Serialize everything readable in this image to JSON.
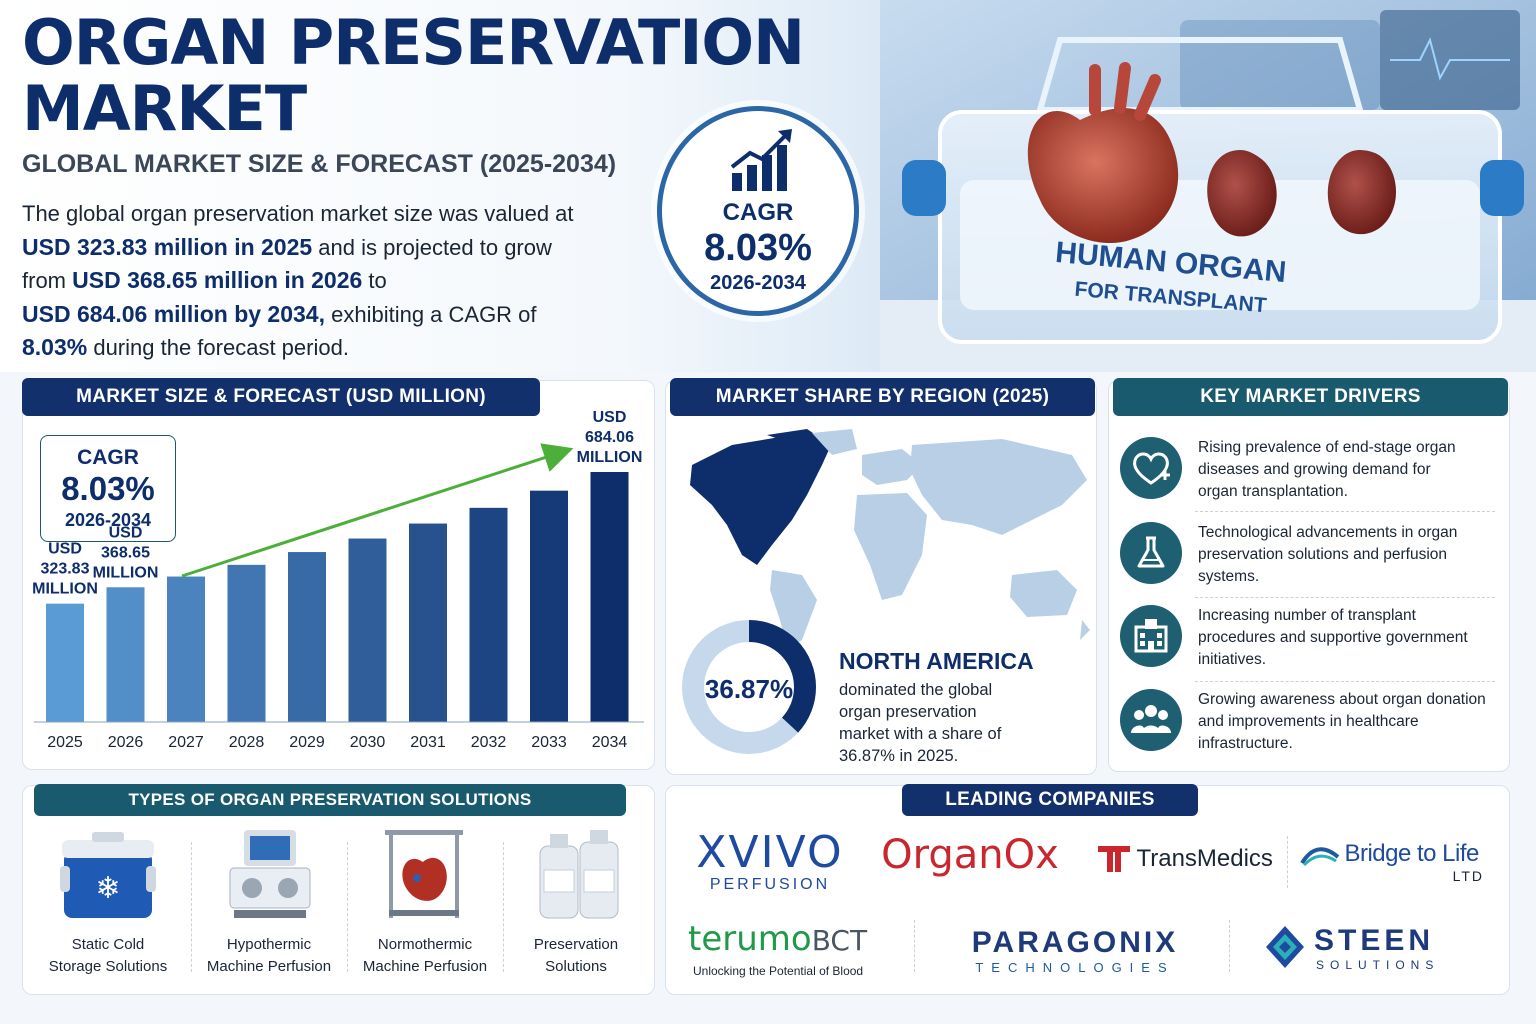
{
  "header": {
    "title_line1": "ORGAN PRESERVATION",
    "title_line2": "MARKET",
    "subtitle": "GLOBAL MARKET SIZE & FORECAST (2025-2034)",
    "intro": {
      "l1": "The global organ preservation market size was valued at",
      "l2b": "USD 323.83 million in 2025",
      "l2": " and is projected to grow",
      "l3a": "from ",
      "l3b": "USD 368.65 million in 2026",
      "l3c": " to",
      "l4b": "USD 684.06 million by 2034,",
      "l4": " exhibiting a CAGR of",
      "l5b": "8.03%",
      "l5": " during the forecast period."
    },
    "cagr": {
      "label": "CAGR",
      "value": "8.03%",
      "period": "2026-2034"
    },
    "photo_label1": "HUMAN ORGAN",
    "photo_label2": "FOR TRANSPLANT"
  },
  "market_panel": {
    "heading": "MARKET SIZE & FORECAST (USD MILLION)",
    "cagr_label": "CAGR",
    "cagr_value": "8.03%",
    "cagr_period": "2026-2034"
  },
  "chart_data": {
    "type": "bar",
    "categories": [
      "2025",
      "2026",
      "2027",
      "2028",
      "2029",
      "2030",
      "2031",
      "2032",
      "2033",
      "2034"
    ],
    "values": [
      323.83,
      368.65,
      398,
      430,
      465,
      502,
      543,
      586,
      633,
      684.06
    ],
    "title": "MARKET SIZE & FORECAST (USD MILLION)",
    "annotations": [
      {
        "category": "2025",
        "lines": [
          "USD",
          "323.83",
          "MILLION"
        ]
      },
      {
        "category": "2026",
        "lines": [
          "USD",
          "368.65",
          "MILLION"
        ]
      },
      {
        "category": "2034",
        "lines": [
          "USD",
          "684.06",
          "MILLION"
        ]
      }
    ],
    "colors": {
      "light": "#5b9bd5",
      "dark": "#0d2d6b",
      "trend": "#4caf3a"
    }
  },
  "region_panel": {
    "heading": "MARKET SHARE BY REGION (2025)",
    "donut_value": "36.87%",
    "share": 36.87,
    "region": "NORTH AMERICA",
    "desc": [
      "dominated the global",
      "organ preservation",
      "market with a share of",
      "36.87% in 2025."
    ]
  },
  "drivers_panel": {
    "heading": "KEY MARKET DRIVERS",
    "items": [
      {
        "icon": "heart-plus-icon",
        "lines": [
          "Rising prevalence of end-stage organ",
          "diseases and growing demand for",
          "organ transplantation."
        ]
      },
      {
        "icon": "flask-icon",
        "lines": [
          "Technological advancements in organ",
          "preservation solutions and perfusion",
          "systems."
        ]
      },
      {
        "icon": "hospital-icon",
        "lines": [
          "Increasing number of transplant",
          "procedures and supportive government",
          "initiatives."
        ]
      },
      {
        "icon": "people-icon",
        "lines": [
          "Growing awareness about organ donation",
          "and improvements in healthcare",
          "infrastructure."
        ]
      }
    ]
  },
  "types_panel": {
    "heading": "TYPES OF ORGAN PRESERVATION SOLUTIONS",
    "items": [
      {
        "icon": "cooler-icon",
        "l1": "Static Cold",
        "l2": "Storage Solutions"
      },
      {
        "icon": "perfusion-machine-icon",
        "l1": "Hypothermic",
        "l2": "Machine Perfusion"
      },
      {
        "icon": "heart-device-icon",
        "l1": "Normothermic",
        "l2": "Machine Perfusion"
      },
      {
        "icon": "bottles-icon",
        "l1": "Preservation",
        "l2": "Solutions"
      }
    ]
  },
  "companies_panel": {
    "heading": "LEADING COMPANIES",
    "xvivo": {
      "name": "XVIVO",
      "sub": "PERFUSION"
    },
    "organox": {
      "name": "OrganOx"
    },
    "transmedics": {
      "name": "TransMedics"
    },
    "bridge": {
      "name": "Bridge to Life",
      "sub": "LTD"
    },
    "terumo": {
      "name1": "terumo",
      "name2": "BCT",
      "sub": "Unlocking the Potential of Blood"
    },
    "paragonix": {
      "name": "PARAGONIX",
      "sub": "TECHNOLOGIES"
    },
    "steen": {
      "name": "STEEN",
      "sub": "SOLUTIONS"
    }
  }
}
